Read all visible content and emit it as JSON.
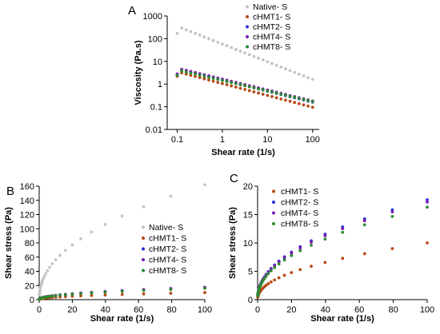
{
  "chart_data": [
    {
      "panel_label": "A",
      "type": "scatter",
      "x_scale": "log",
      "y_scale": "log",
      "xlabel": "Shear rate (1/s)",
      "ylabel": "Viscosity (Pa.s)",
      "xlim": [
        0.06,
        140
      ],
      "ylim": [
        0.01,
        1000
      ],
      "x_ticks": [
        "0.1",
        "1",
        "10",
        "100"
      ],
      "y_ticks": [
        "0.01",
        "0.1",
        "1",
        "10",
        "100",
        "1000"
      ],
      "legend_position": "top-right",
      "power_law": true,
      "x_range": [
        0.1,
        100
      ],
      "n_points": 31,
      "series": [
        {
          "name": "Native- S",
          "color": "#c4c4c4",
          "y_start": 350,
          "y_end": 1.6,
          "y_first": 170
        },
        {
          "name": "cHMT1- S",
          "color": "#b84a18",
          "y_start": 3.5,
          "y_end": 0.095,
          "y_first": 2.2
        },
        {
          "name": "cHMT2- S",
          "color": "#2d2dd8",
          "y_start": 4.5,
          "y_end": 0.16,
          "y_first": 2.5
        },
        {
          "name": "cHMT4- S",
          "color": "#7a1fb0",
          "y_start": 5.0,
          "y_end": 0.18,
          "y_first": 2.8
        },
        {
          "name": "cHMT8- S",
          "color": "#2e8b2e",
          "y_start": 4.2,
          "y_end": 0.17,
          "y_first": 2.4
        }
      ]
    },
    {
      "panel_label": "B",
      "type": "scatter",
      "xlabel": "Shear rate (1/s)",
      "ylabel": "Shear stress (Pa)",
      "xlim": [
        0,
        100
      ],
      "ylim": [
        0,
        160
      ],
      "x_ticks": [
        "0",
        "20",
        "40",
        "60",
        "80",
        "100"
      ],
      "y_ticks": [
        "0",
        "20",
        "40",
        "60",
        "80",
        "100",
        "120",
        "140",
        "160"
      ],
      "legend_position": "right",
      "power_law": false,
      "x_range": [
        0.1,
        100
      ],
      "n_points": 31,
      "series": [
        {
          "name": "Native- S",
          "color": "#c4c4c4",
          "y_start": 35,
          "y_end": 162
        },
        {
          "name": "cHMT1- S",
          "color": "#b84a18",
          "y_start": 0.35,
          "y_end": 10
        },
        {
          "name": "cHMT2- S",
          "color": "#2d2dd8",
          "y_start": 0.45,
          "y_end": 17
        },
        {
          "name": "cHMT4- S",
          "color": "#7a1fb0",
          "y_start": 0.5,
          "y_end": 17.5
        },
        {
          "name": "cHMT8- S",
          "color": "#2e8b2e",
          "y_start": 0.42,
          "y_end": 16
        }
      ]
    },
    {
      "panel_label": "C",
      "type": "scatter",
      "xlabel": "Shear rate (1/s)",
      "ylabel": "Shear stress (Pa)",
      "xlim": [
        0,
        100
      ],
      "ylim": [
        0,
        20
      ],
      "x_ticks": [
        "0",
        "20",
        "40",
        "60",
        "80",
        "100"
      ],
      "y_ticks": [
        "0",
        "5",
        "10",
        "15",
        "20"
      ],
      "legend_position": "top-left",
      "power_law": false,
      "x_range": [
        0.1,
        100
      ],
      "n_points": 31,
      "series": [
        {
          "name": "cHMT1- S",
          "color": "#b84a18",
          "y_start": 0.35,
          "y_end": 10
        },
        {
          "name": "cHMT2- S",
          "color": "#2d2dd8",
          "y_start": 0.45,
          "y_end": 17.6
        },
        {
          "name": "cHMT4- S",
          "color": "#7a1fb0",
          "y_start": 0.5,
          "y_end": 17.2
        },
        {
          "name": "cHMT8- S",
          "color": "#2e8b2e",
          "y_start": 0.42,
          "y_end": 16.3
        }
      ]
    }
  ]
}
